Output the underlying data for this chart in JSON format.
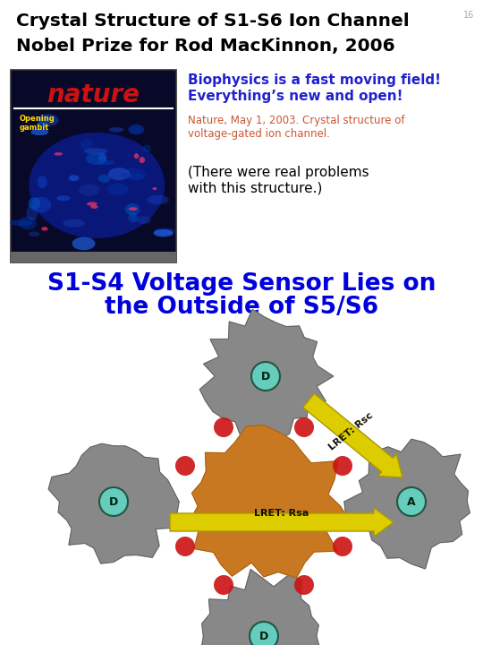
{
  "title_line1": "Crystal Structure of S1-S6 Ion Channel",
  "title_line2": "Nobel Prize for Rod MacKinnon, 2006",
  "title_fontsize": 14.5,
  "title_color": "#000000",
  "slide_num": "16",
  "bio_line1": "Biophysics is a fast moving field!",
  "bio_line2": "Everything’s new and open!",
  "bio_color": "#2222cc",
  "bio_fontsize": 11,
  "nature_ref": "Nature, May 1, 2003. Crystal structure of\nvoltage-gated ion channel.",
  "nature_ref_color": "#cc5533",
  "nature_ref_fontsize": 8.5,
  "problems_text": "(There were real problems\nwith this structure.)",
  "problems_fontsize": 11,
  "problems_color": "#000000",
  "sensor_line1": "S1-S4 Voltage Sensor Lies on",
  "sensor_line2": "the Outside of S5/S6",
  "sensor_fontsize": 19,
  "sensor_color": "#0000dd",
  "background_color": "#ffffff",
  "lret_color": "#ddcc00",
  "lret_edge_color": "#aa9900",
  "label_circle_color": "#55bbaa",
  "label_circle_edge": "#336655",
  "label_text_color": "#003300",
  "core_color": "#c87820",
  "grey_domain_color": "#888888",
  "red_connector_color": "#cc1111",
  "nature_bg": "#080828",
  "nature_title_color": "#cc1111",
  "nature_yellow": "#ffdd00"
}
